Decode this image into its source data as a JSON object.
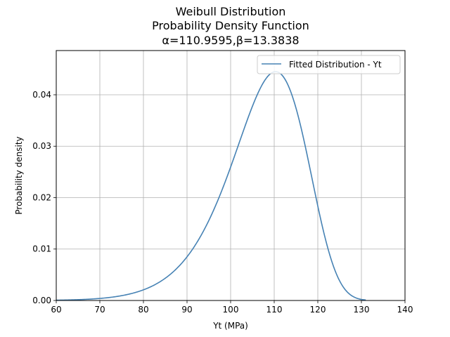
{
  "chart_data": {
    "type": "line",
    "title_lines": [
      "Weibull Distribution",
      "Probability Density Function",
      "α=110.9595,β=13.3838"
    ],
    "xlabel": "Yt (MPa)",
    "ylabel": "Probability density",
    "xlim": [
      60,
      140
    ],
    "ylim": [
      0,
      0.0486
    ],
    "x_ticks": [
      60,
      70,
      80,
      90,
      100,
      110,
      120,
      130,
      140
    ],
    "x_tick_labels": [
      "60",
      "70",
      "80",
      "90",
      "100",
      "110",
      "120",
      "130",
      "140"
    ],
    "y_ticks": [
      0,
      0.01,
      0.02,
      0.03,
      0.04
    ],
    "y_tick_labels": [
      "0.00",
      "0.01",
      "0.02",
      "0.03",
      "0.04"
    ],
    "grid": true,
    "legend_position": "top-right",
    "series": [
      {
        "name": "Fitted Distribution - Yt",
        "color": "#4682b4",
        "distribution": "weibull",
        "alpha": 110.9595,
        "beta": 13.3838,
        "x_range": [
          60,
          131
        ],
        "x": [
          60,
          65,
          70,
          75,
          80,
          85,
          90,
          95,
          100,
          105,
          110,
          115,
          120,
          125,
          130,
          131
        ],
        "y": [
          0.0,
          0.0002,
          0.0005,
          0.001,
          0.0021,
          0.0041,
          0.0087,
          0.0156,
          0.0258,
          0.0378,
          0.0444,
          0.0372,
          0.0185,
          0.0036,
          0.0002,
          0.0001
        ]
      }
    ]
  }
}
